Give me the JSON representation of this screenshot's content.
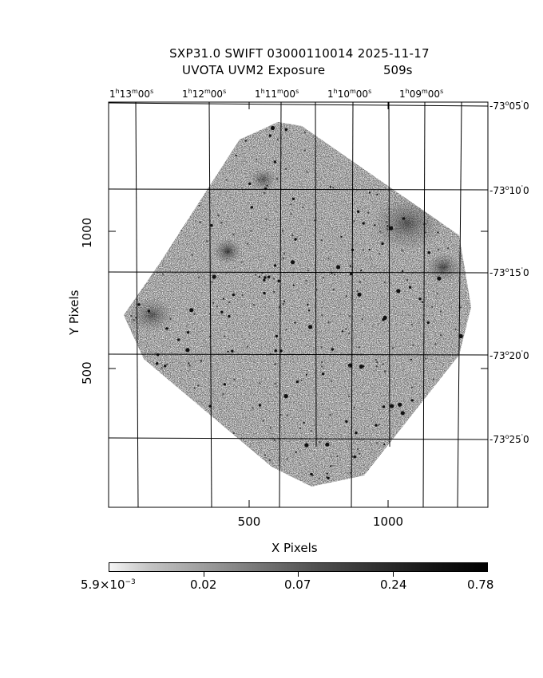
{
  "title": {
    "line1": "SXP31.0 SWIFT 03000110014 2025-11-17",
    "line2": "UVOTA UVM2 Exposure",
    "exposure": "509s"
  },
  "axes": {
    "xlabel": "X Pixels",
    "ylabel": "Y Pixels",
    "xticks": [
      "500",
      "1000"
    ],
    "yticks": [
      "500",
      "1000"
    ]
  },
  "ra_labels": [
    {
      "h": "1",
      "m": "13",
      "s": "00"
    },
    {
      "h": "1",
      "m": "12",
      "s": "00"
    },
    {
      "h": "1",
      "m": "11",
      "s": "00"
    },
    {
      "h": "1",
      "m": "10",
      "s": "00"
    },
    {
      "h": "1",
      "m": "09",
      "s": "00"
    }
  ],
  "dec_labels": [
    {
      "deg": "-73",
      "min": "05",
      "sec": "0"
    },
    {
      "deg": "-73",
      "min": "10",
      "sec": "0"
    },
    {
      "deg": "-73",
      "min": "15",
      "sec": "0"
    },
    {
      "deg": "-73",
      "min": "20",
      "sec": "0"
    },
    {
      "deg": "-73",
      "min": "25",
      "sec": "0"
    }
  ],
  "colorbar": {
    "first_base": "5.9×10",
    "first_exp": "−3",
    "labels": [
      "0.02",
      "0.07",
      "0.24",
      "0.78"
    ]
  }
}
